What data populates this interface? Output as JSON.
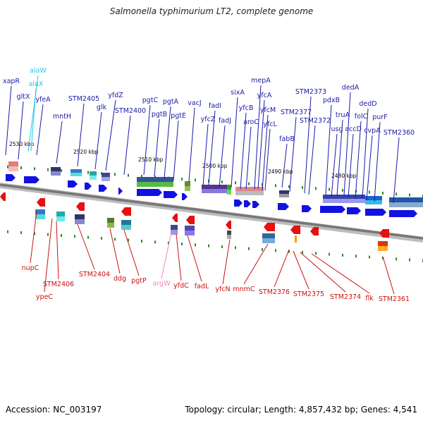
{
  "title": "Salmonella typhimurium LT2, complete genome",
  "footer": {
    "accession": "Accession: NC_003197",
    "info": "Topology: circular; Length: 4,857,432 bp; Genes: 4,541"
  },
  "colors": {
    "forward_label": "#1a1aa8",
    "reverse_label": "#cc1111",
    "rna_label": "#22c8e8",
    "trna_label": "#ee88bb",
    "backbone": "#888888"
  },
  "ticks": [
    "2530 kbp",
    "2520 kbp",
    "2510 kbp",
    "2500 kbp",
    "2490 kbp",
    "2480 kbp"
  ],
  "top_labels": [
    "xapR",
    "gltX",
    "alaW",
    "alaX",
    "yfeA",
    "mntH",
    "STM2405",
    "glk",
    "yfdZ",
    "STM2400",
    "pgtC",
    "pgtB",
    "pgtA",
    "pgtE",
    "vacJ",
    "fadI",
    "yfcZ",
    "fadJ",
    "sixA",
    "mepA",
    "yfcA",
    "yfcB",
    "aroC",
    "yfcM",
    "yfcL",
    "STM2373",
    "STM2377",
    "fabB",
    "STM2372",
    "pdxB",
    "dedA",
    "truA",
    "usg",
    "accD",
    "folC",
    "dedD",
    "cvpA",
    "purF",
    "STM2360"
  ],
  "bottom_labels": [
    "nupC",
    "STM2406",
    "ypeC",
    "STM2404",
    "ddg",
    "pgtP",
    "argW",
    "yfdC",
    "fadL",
    "yfcN",
    "mnmC",
    "STM2376",
    "STM2375",
    "STM2374",
    "flk",
    "STM2361"
  ]
}
